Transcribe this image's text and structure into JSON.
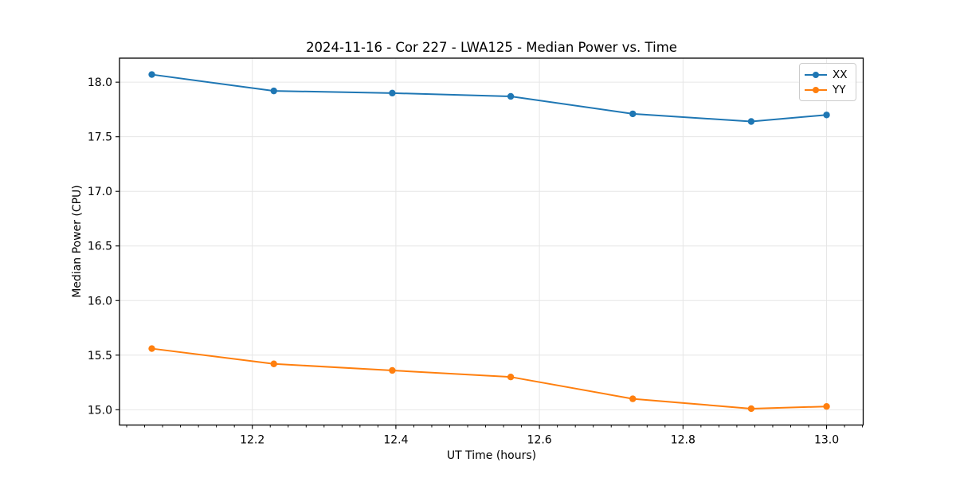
{
  "chart_data": {
    "type": "line",
    "title": "2024-11-16 - Cor 227 - LWA125 - Median Power vs. Time",
    "xlabel": "UT Time (hours)",
    "ylabel": "Median Power (CPU)",
    "x": [
      12.06,
      12.23,
      12.395,
      12.56,
      12.73,
      12.895,
      13.0
    ],
    "series": [
      {
        "name": "XX",
        "color": "#1f77b4",
        "values": [
          18.07,
          17.92,
          17.9,
          17.87,
          17.71,
          17.64,
          17.7
        ]
      },
      {
        "name": "YY",
        "color": "#ff7f0e",
        "values": [
          15.56,
          15.42,
          15.36,
          15.3,
          15.1,
          15.01,
          15.03
        ]
      }
    ],
    "xlim": [
      12.015,
      13.051
    ],
    "ylim": [
      14.86,
      18.22
    ],
    "x_ticks": [
      12.2,
      12.4,
      12.6,
      12.8,
      13.0
    ],
    "x_tick_labels": [
      "12.2",
      "12.4",
      "12.6",
      "12.8",
      "13.0"
    ],
    "x_minor_step": 0.025,
    "y_ticks": [
      15.0,
      15.5,
      16.0,
      16.5,
      17.0,
      17.5,
      18.0
    ],
    "y_tick_labels": [
      "15.0",
      "15.5",
      "16.0",
      "16.5",
      "17.0",
      "17.5",
      "18.0"
    ],
    "grid": true,
    "grid_color": "#e6e6e6",
    "spine_color": "#000000",
    "legend_position": "upper right",
    "marker": "circle",
    "marker_radius": 4.2,
    "line_width": 2
  }
}
